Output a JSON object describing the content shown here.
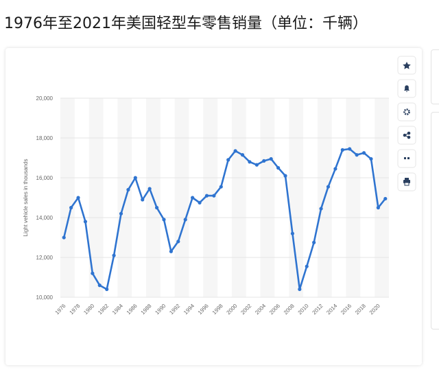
{
  "chart_data": {
    "type": "line",
    "title": "1976年至2021年美国轻型车零售销量（单位：千辆）",
    "y_label": "Light vehicle sales in thousands",
    "categories": [
      "1976",
      null,
      "1978",
      null,
      "1980",
      null,
      "1982",
      null,
      "1984",
      null,
      "1986",
      null,
      "1988",
      null,
      "1990",
      null,
      "1992",
      null,
      "1994",
      null,
      "1996",
      null,
      "1998",
      null,
      "2000",
      null,
      "2002",
      null,
      "2004",
      null,
      "2006",
      null,
      "2008",
      null,
      "2010",
      null,
      "2012",
      null,
      "2014",
      null,
      "2016",
      null,
      "2018",
      null,
      "2020",
      null
    ],
    "series": [
      {
        "color": "#2f74d0",
        "values": [
          13000,
          14500,
          15000,
          13800,
          11200,
          10600,
          10400,
          12100,
          14200,
          15400,
          16000,
          14900,
          15450,
          14500,
          13900,
          12300,
          12800,
          13900,
          15000,
          14750,
          15100,
          15100,
          15550,
          16900,
          17350,
          17150,
          16800,
          16650,
          16850,
          16950,
          16500,
          16100,
          13200,
          10400,
          11550,
          12750,
          14450,
          15550,
          16450,
          17400,
          17450,
          17150,
          17250,
          16950,
          14500,
          14950
        ]
      }
    ],
    "ylim": [
      10000,
      20000
    ],
    "yticks": [
      {
        "value": 10000,
        "label": "10,000"
      },
      {
        "value": 12000,
        "label": "12,000"
      },
      {
        "value": 14000,
        "label": "14,000"
      },
      {
        "value": 16000,
        "label": "16,000"
      },
      {
        "value": 18000,
        "label": "18,000"
      },
      {
        "value": 20000,
        "label": "20,000"
      }
    ],
    "grid": true
  }
}
